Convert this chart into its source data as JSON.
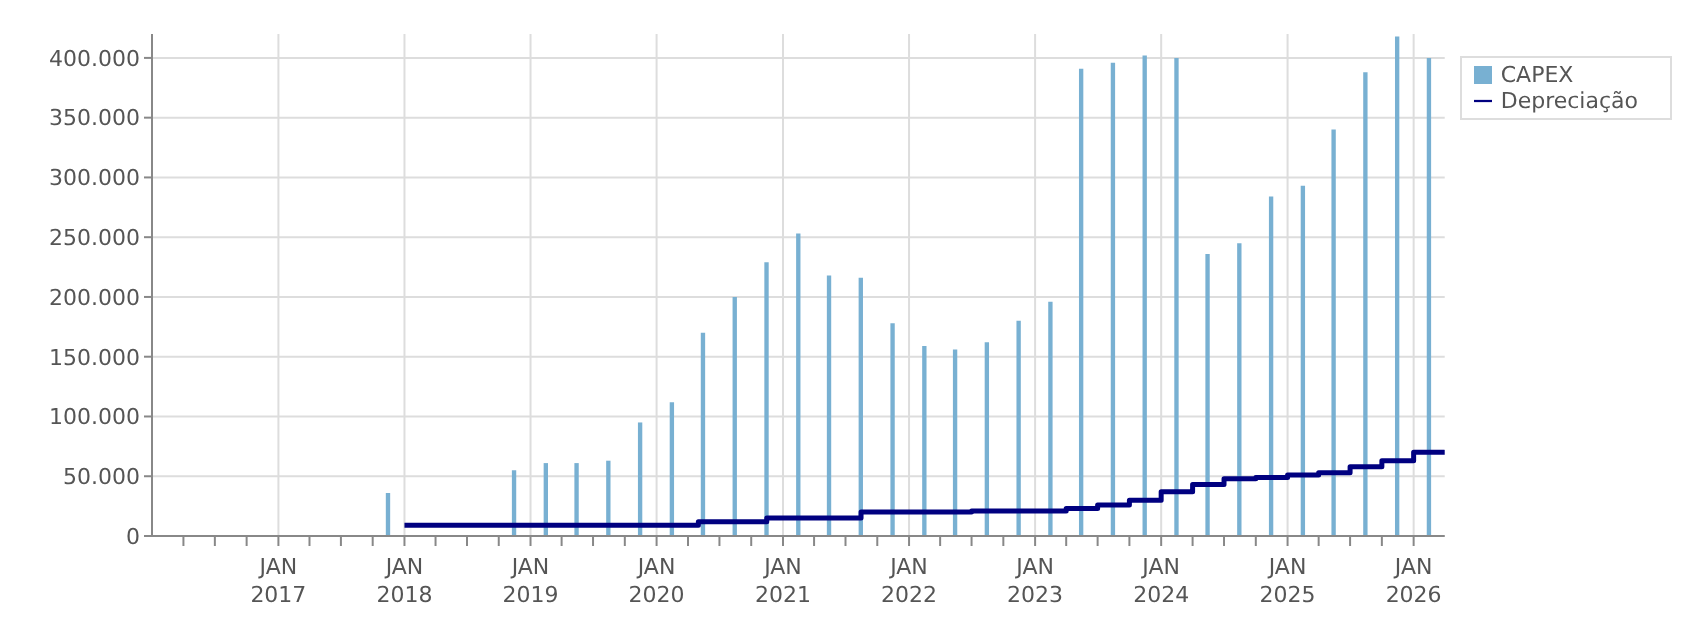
{
  "chart_data": {
    "type": "bar",
    "xlim": [
      "2016-01-01",
      "2026-04-01"
    ],
    "xticks": [
      {
        "value": "2016-04-01",
        "label": null
      },
      {
        "value": "2016-07-01",
        "label": null
      },
      {
        "value": "2016-10-01",
        "label": null
      },
      {
        "value": "2017-01-01",
        "label": "JAN 2017"
      },
      {
        "value": "2017-04-01",
        "label": null
      },
      {
        "value": "2017-07-01",
        "label": null
      },
      {
        "value": "2017-10-01",
        "label": null
      },
      {
        "value": "2018-01-01",
        "label": "JAN 2018"
      },
      {
        "value": "2018-04-01",
        "label": null
      },
      {
        "value": "2018-07-01",
        "label": null
      },
      {
        "value": "2018-10-01",
        "label": null
      },
      {
        "value": "2019-01-01",
        "label": "JAN 2019"
      },
      {
        "value": "2019-04-01",
        "label": null
      },
      {
        "value": "2019-07-01",
        "label": null
      },
      {
        "value": "2019-10-01",
        "label": null
      },
      {
        "value": "2020-01-01",
        "label": "JAN 2020"
      },
      {
        "value": "2020-04-01",
        "label": null
      },
      {
        "value": "2020-07-01",
        "label": null
      },
      {
        "value": "2020-10-01",
        "label": null
      },
      {
        "value": "2021-01-01",
        "label": "JAN 2021"
      },
      {
        "value": "2021-04-01",
        "label": null
      },
      {
        "value": "2021-07-01",
        "label": null
      },
      {
        "value": "2021-10-01",
        "label": null
      },
      {
        "value": "2022-01-01",
        "label": "JAN 2022"
      },
      {
        "value": "2022-04-01",
        "label": null
      },
      {
        "value": "2022-07-01",
        "label": null
      },
      {
        "value": "2022-10-01",
        "label": null
      },
      {
        "value": "2023-01-01",
        "label": "JAN 2023"
      },
      {
        "value": "2023-04-01",
        "label": null
      },
      {
        "value": "2023-07-01",
        "label": null
      },
      {
        "value": "2023-10-01",
        "label": null
      },
      {
        "value": "2024-01-01",
        "label": "JAN 2024"
      },
      {
        "value": "2024-04-01",
        "label": null
      },
      {
        "value": "2024-07-01",
        "label": null
      },
      {
        "value": "2024-10-01",
        "label": null
      },
      {
        "value": "2025-01-01",
        "label": "JAN 2025"
      },
      {
        "value": "2025-04-01",
        "label": null
      },
      {
        "value": "2025-07-01",
        "label": null
      },
      {
        "value": "2025-10-01",
        "label": null
      },
      {
        "value": "2026-01-01",
        "label": "JAN 2026"
      }
    ],
    "ylim": [
      0,
      420000
    ],
    "yticks": [
      0,
      {
        "value": 50000,
        "label": "50.000"
      },
      {
        "value": 100000,
        "label": "100.000"
      },
      {
        "value": 150000,
        "label": "150.000"
      },
      {
        "value": 200000,
        "label": "200.000"
      },
      {
        "value": 250000,
        "label": "250.000"
      },
      {
        "value": 300000,
        "label": "300.000"
      },
      {
        "value": 350000,
        "label": "350.000"
      },
      {
        "value": 400000,
        "label": "400.000"
      }
    ],
    "grid": true,
    "legend": "top right",
    "series": [
      {
        "name": "CAPEX",
        "color": "#78b0d2",
        "x": [
          "2017-11-15",
          "2018-11-15",
          "2019-02-15",
          "2019-05-15",
          "2019-08-15",
          "2019-11-15",
          "2020-02-15",
          "2020-05-15",
          "2020-08-15",
          "2020-11-15",
          "2021-02-15",
          "2021-05-15",
          "2021-08-15",
          "2021-11-15",
          "2022-02-15",
          "2022-05-15",
          "2022-08-15",
          "2022-11-15",
          "2023-02-15",
          "2023-05-15",
          "2023-08-15",
          "2023-11-15",
          "2024-02-15",
          "2024-05-15",
          "2024-08-15",
          "2024-11-15",
          "2025-02-15",
          "2025-05-15",
          "2025-08-15",
          "2025-11-15",
          "2026-02-15"
        ],
        "values": [
          36000,
          55000,
          61000,
          61000,
          63000,
          95000,
          112000,
          170000,
          200000,
          229000,
          253000,
          218000,
          216000,
          178000,
          159000,
          156000,
          162000,
          180000,
          196000,
          391000,
          396000,
          402000,
          400000,
          236000,
          245000,
          284000,
          293000,
          340000,
          388000,
          418000,
          400000
        ]
      },
      {
        "name": "Depreciação",
        "type": "step",
        "color": "#000080",
        "x": [
          "2018-01-01",
          "2020-05-01",
          "2020-11-15",
          "2021-08-15",
          "2022-07-01",
          "2023-04-01",
          "2023-07-01",
          "2023-10-01",
          "2024-01-01",
          "2024-04-01",
          "2024-07-01",
          "2024-10-01",
          "2025-01-01",
          "2025-04-01",
          "2025-07-01",
          "2025-10-01",
          "2026-01-01",
          "2026-04-01"
        ],
        "values": [
          9000,
          12000,
          15000,
          20000,
          21000,
          23000,
          26000,
          30000,
          37000,
          43000,
          48000,
          49000,
          51000,
          53000,
          58000,
          63000,
          70000,
          72000
        ]
      }
    ]
  }
}
